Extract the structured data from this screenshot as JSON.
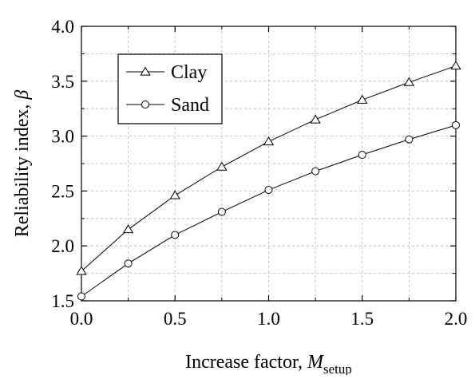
{
  "chart_data": {
    "type": "line",
    "xlabel": "Increase factor, ",
    "xlabel_math": "M",
    "xlabel_sub": "setup",
    "ylabel": "Reliability index, ",
    "ylabel_math": "β",
    "xlim": [
      0.0,
      2.0
    ],
    "ylim": [
      1.5,
      4.0
    ],
    "x_ticks": [
      "0.0",
      "0.5",
      "1.0",
      "1.5",
      "2.0"
    ],
    "y_ticks": [
      "1.5",
      "2.0",
      "2.5",
      "3.0",
      "3.5",
      "4.0"
    ],
    "grid": true,
    "legend_position": "top-left",
    "x": [
      0.0,
      0.25,
      0.5,
      0.75,
      1.0,
      1.25,
      1.5,
      1.75,
      2.0
    ],
    "series": [
      {
        "name": "Clay",
        "marker": "triangle",
        "values": [
          1.77,
          2.15,
          2.46,
          2.72,
          2.95,
          3.15,
          3.33,
          3.49,
          3.64
        ]
      },
      {
        "name": "Sand",
        "marker": "circle",
        "values": [
          1.54,
          1.84,
          2.1,
          2.31,
          2.51,
          2.68,
          2.83,
          2.97,
          3.1
        ]
      }
    ]
  }
}
